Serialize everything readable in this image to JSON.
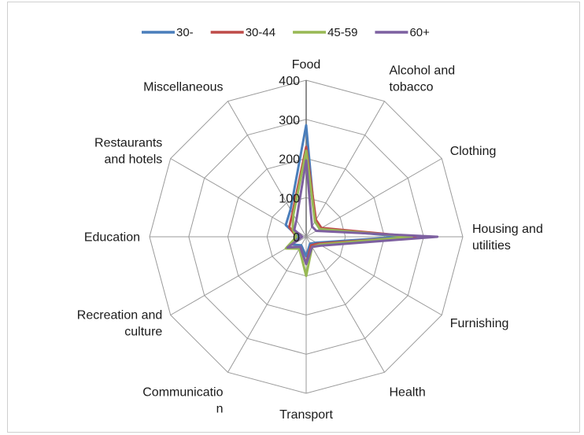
{
  "chart_data": {
    "type": "radar",
    "title": "",
    "categories": [
      "Food",
      "Alcohol and tobacco",
      "Clothing",
      "Housing and utilities",
      "Furnishing",
      "Health",
      "Transport",
      "Communication",
      "Recreation and culture",
      "Education",
      "Restaurants and hotels",
      "Miscellaneous"
    ],
    "category_label_lines": [
      [
        "Food"
      ],
      [
        "Alcohol and",
        "tobacco"
      ],
      [
        "Clothing"
      ],
      [
        "Housing and",
        "utilities"
      ],
      [
        "Furnishing"
      ],
      [
        "Health"
      ],
      [
        "Transport"
      ],
      [
        "Communicatio",
        "n"
      ],
      [
        "Recreation and",
        "culture"
      ],
      [
        "Education"
      ],
      [
        "Restaurants",
        "and hotels"
      ],
      [
        "Miscellaneous"
      ]
    ],
    "r_ticks": [
      0,
      100,
      200,
      300,
      400
    ],
    "r_range": [
      0,
      400
    ],
    "grid": true,
    "legend_position": "top",
    "series": [
      {
        "name": "30-",
        "color": "#4A7EBB",
        "values": [
          285,
          45,
          40,
          250,
          30,
          20,
          50,
          25,
          40,
          20,
          60,
          80
        ]
      },
      {
        "name": "30-44",
        "color": "#BE4B48",
        "values": [
          230,
          50,
          45,
          280,
          35,
          25,
          70,
          30,
          55,
          25,
          50,
          70
        ]
      },
      {
        "name": "45-59",
        "color": "#98B954",
        "values": [
          220,
          45,
          40,
          270,
          40,
          30,
          100,
          35,
          60,
          25,
          40,
          65
        ]
      },
      {
        "name": "60+",
        "color": "#7D60A0",
        "values": [
          195,
          30,
          30,
          335,
          45,
          30,
          70,
          30,
          55,
          10,
          35,
          50
        ]
      }
    ]
  }
}
